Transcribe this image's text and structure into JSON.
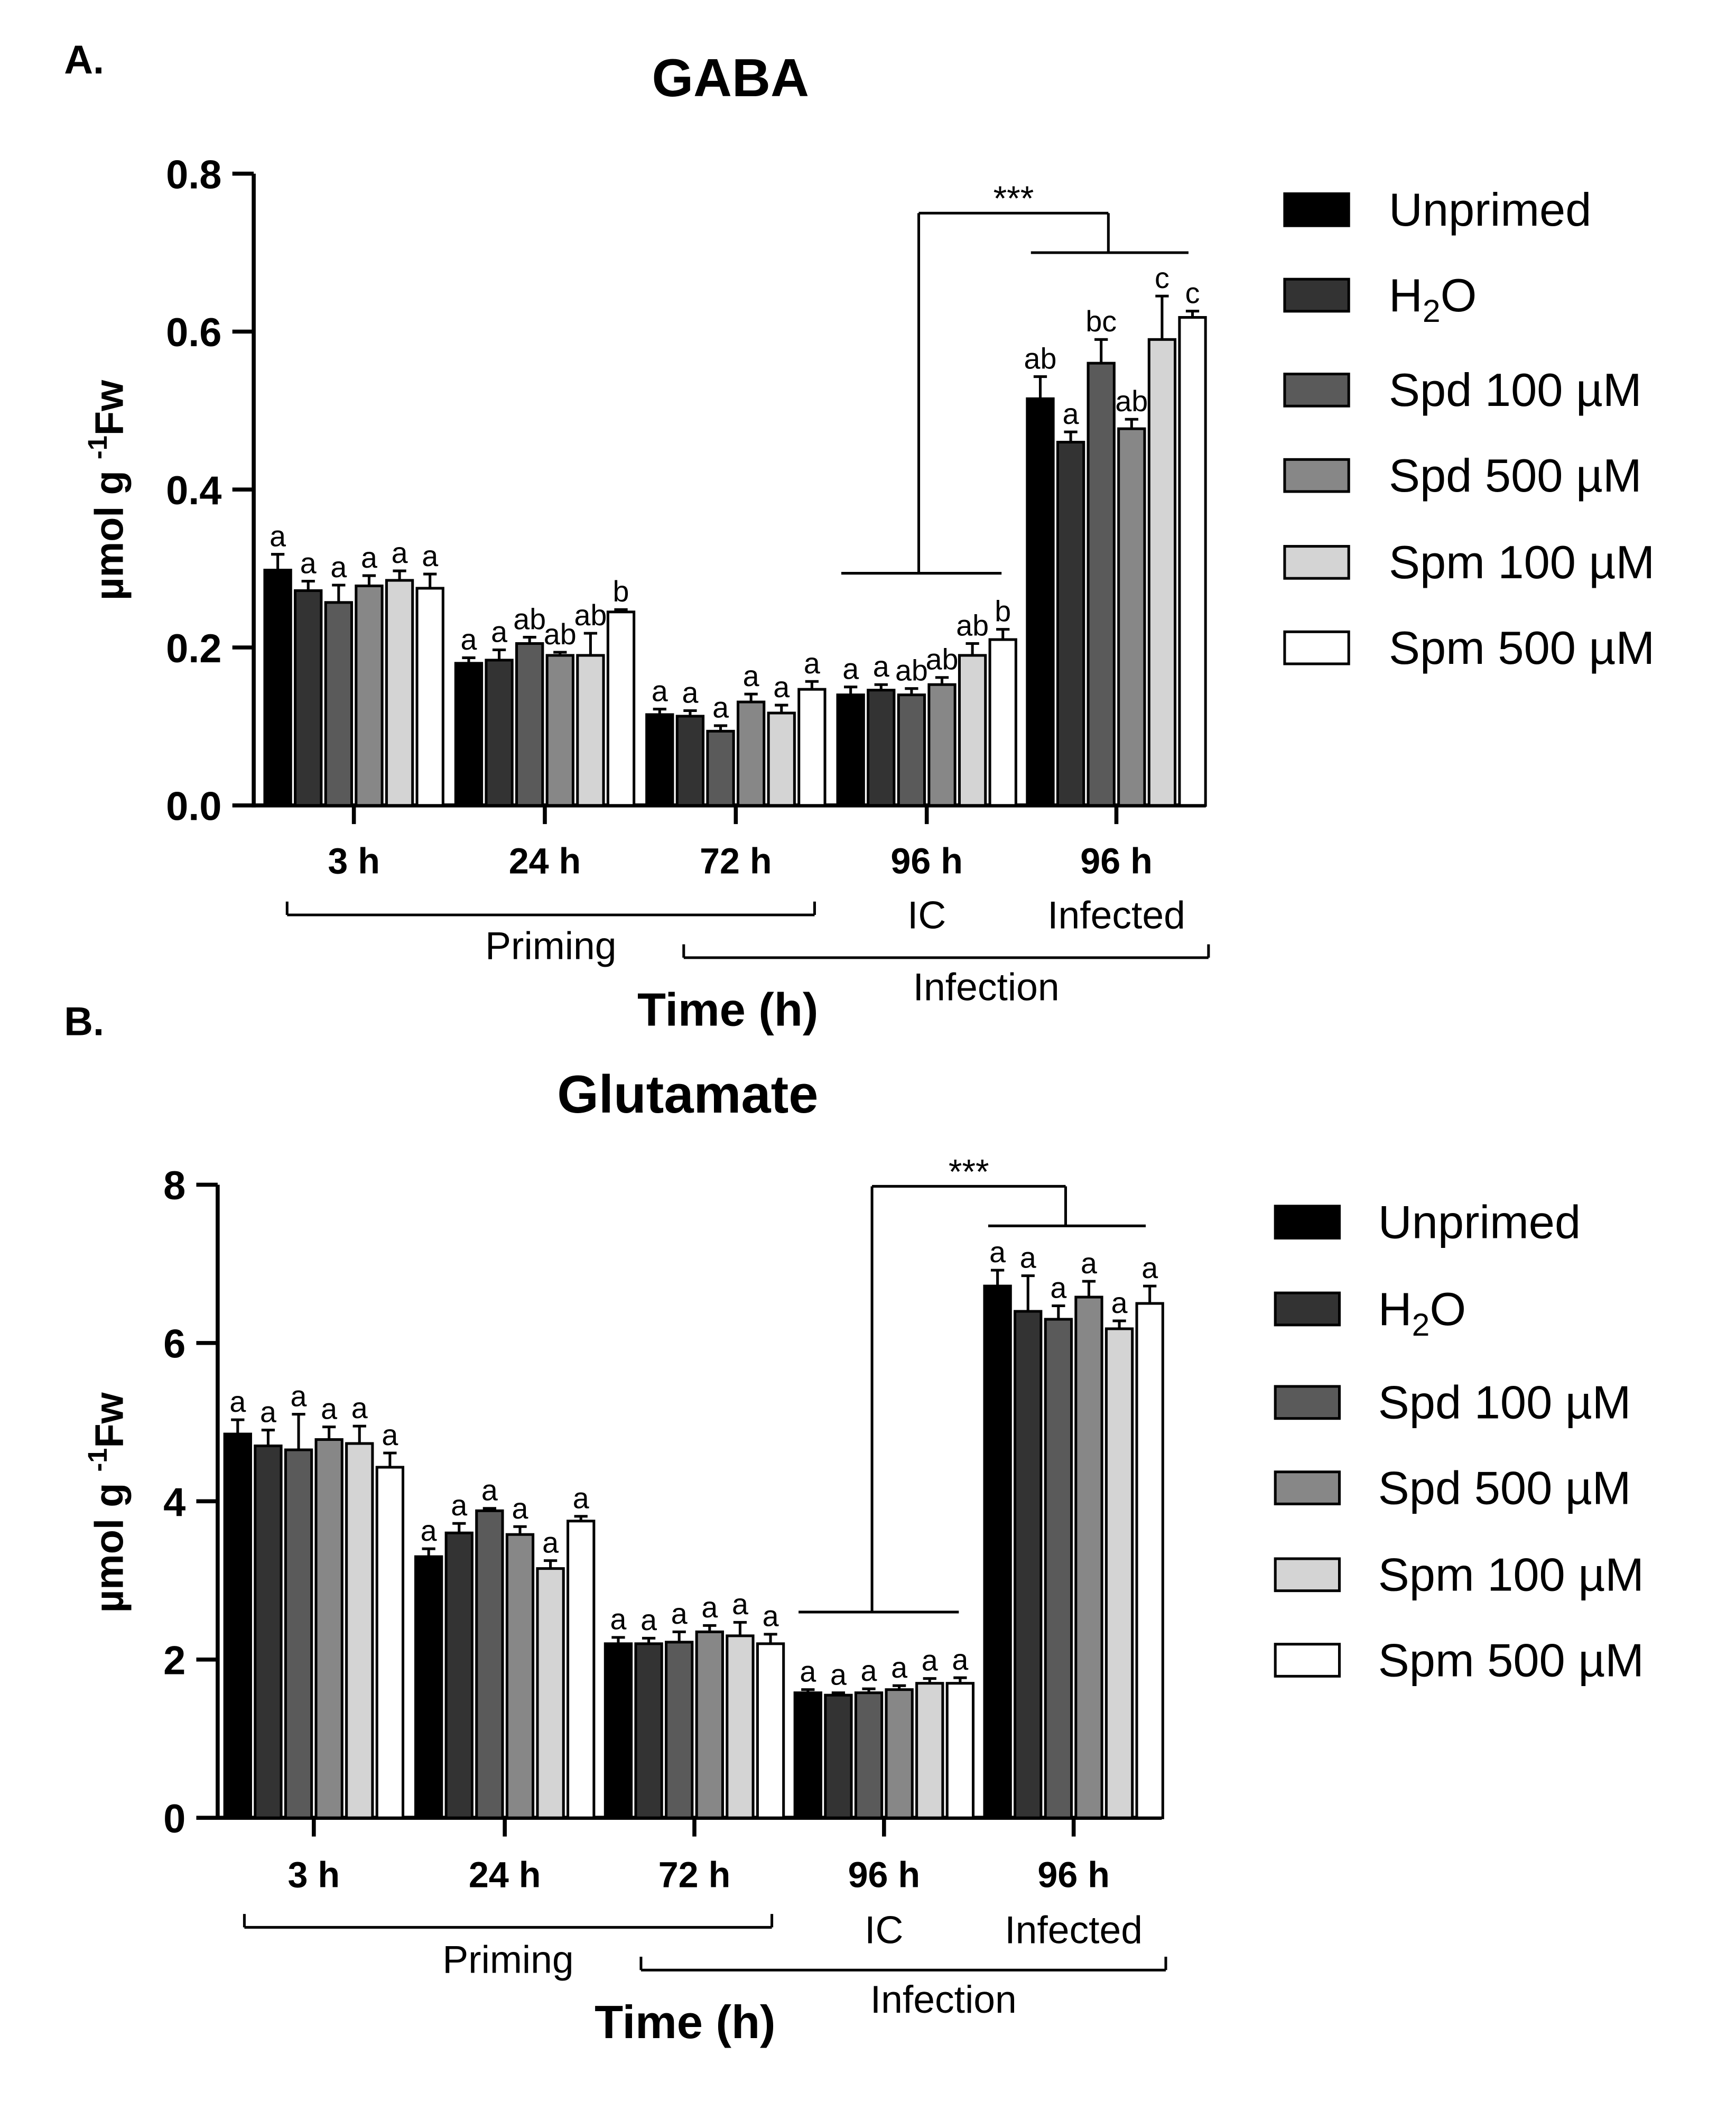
{
  "chart_data": [
    {
      "type": "bar",
      "panel_label": "A.",
      "title": "GABA",
      "xlabel": "Time (h)",
      "ylabel": "µmol g",
      "ylabel_sup": "-1",
      "ylabel_tail": "Fw",
      "ylim": [
        0,
        0.8
      ],
      "yticks": [
        0,
        0.2,
        0.4,
        0.6,
        0.8
      ],
      "ytick_labels": [
        "0.0",
        "0.2",
        "0.4",
        "0.6",
        "0.8"
      ],
      "categories": [
        "3 h",
        "24 h",
        "72 h",
        "96 h",
        "96 h"
      ],
      "category_sublabels": [
        "",
        "",
        "",
        "IC",
        "Infected"
      ],
      "group_labels": {
        "priming": "Priming",
        "infection": "Infection"
      },
      "legend_position": "right",
      "series": [
        {
          "name": "Unprimed",
          "color": "#000000",
          "values": [
            0.298,
            0.18,
            0.115,
            0.14,
            0.515
          ],
          "errors": [
            0.02,
            0.007,
            0.007,
            0.01,
            0.028
          ],
          "letters": [
            "a",
            "a",
            "a",
            "a",
            "ab"
          ]
        },
        {
          "name": "H2O",
          "color": "#333333",
          "values": [
            0.272,
            0.184,
            0.113,
            0.146,
            0.46
          ],
          "errors": [
            0.012,
            0.013,
            0.007,
            0.007,
            0.013
          ],
          "letters": [
            "a",
            "a",
            "a",
            "a",
            "a"
          ]
        },
        {
          "name": "Spd 100 µM",
          "color": "#5a5a5a",
          "values": [
            0.257,
            0.205,
            0.094,
            0.14,
            0.56
          ],
          "errors": [
            0.022,
            0.008,
            0.007,
            0.008,
            0.03
          ],
          "letters": [
            "a",
            "ab",
            "a",
            "ab",
            "bc"
          ]
        },
        {
          "name": "Spd 500 µM",
          "color": "#878787",
          "values": [
            0.278,
            0.19,
            0.131,
            0.153,
            0.477
          ],
          "errors": [
            0.013,
            0.004,
            0.01,
            0.009,
            0.012
          ],
          "letters": [
            "a",
            "ab",
            "a",
            "ab",
            "ab"
          ]
        },
        {
          "name": "Spm 100 µM",
          "color": "#d4d4d4",
          "values": [
            0.285,
            0.19,
            0.117,
            0.19,
            0.59
          ],
          "errors": [
            0.012,
            0.028,
            0.01,
            0.015,
            0.055
          ],
          "letters": [
            "a",
            "ab",
            "a",
            "ab",
            "c"
          ]
        },
        {
          "name": "Spm 500 µM",
          "color": "#ffffff",
          "values": [
            0.275,
            0.245,
            0.147,
            0.21,
            0.618
          ],
          "errors": [
            0.018,
            0.003,
            0.01,
            0.013,
            0.008
          ],
          "letters": [
            "a",
            "b",
            "a",
            "b",
            "c"
          ]
        }
      ],
      "significance": {
        "label": "***",
        "left_level": 0.294,
        "right_level": 0.7,
        "top_level": 0.75
      }
    },
    {
      "type": "bar",
      "panel_label": "B.",
      "title": "Glutamate",
      "xlabel": "Time (h)",
      "ylabel": "µmol g",
      "ylabel_sup": "-1",
      "ylabel_tail": "Fw",
      "ylim": [
        0,
        8
      ],
      "yticks": [
        0,
        2,
        4,
        6,
        8
      ],
      "ytick_labels": [
        "0",
        "2",
        "4",
        "6",
        "8"
      ],
      "categories": [
        "3 h",
        "24 h",
        "72 h",
        "96 h",
        "96 h"
      ],
      "category_sublabels": [
        "",
        "",
        "",
        "IC",
        "Infected"
      ],
      "group_labels": {
        "priming": "Priming",
        "infection": "Infection"
      },
      "legend_position": "right",
      "series": [
        {
          "name": "Unprimed",
          "color": "#000000",
          "values": [
            4.85,
            3.3,
            2.2,
            1.58,
            6.72
          ],
          "errors": [
            0.18,
            0.1,
            0.08,
            0.04,
            0.2
          ],
          "letters": [
            "a",
            "a",
            "a",
            "a",
            "a"
          ]
        },
        {
          "name": "H2O",
          "color": "#333333",
          "values": [
            4.7,
            3.6,
            2.2,
            1.55,
            6.4
          ],
          "errors": [
            0.2,
            0.12,
            0.07,
            0.03,
            0.45
          ],
          "letters": [
            "a",
            "a",
            "a",
            "a",
            "a"
          ]
        },
        {
          "name": "Spd 100 µM",
          "color": "#5a5a5a",
          "values": [
            4.65,
            3.88,
            2.22,
            1.58,
            6.3
          ],
          "errors": [
            0.45,
            0.03,
            0.13,
            0.05,
            0.17
          ],
          "letters": [
            "a",
            "a",
            "a",
            "a",
            "a"
          ]
        },
        {
          "name": "Spd 500 µM",
          "color": "#878787",
          "values": [
            4.78,
            3.58,
            2.35,
            1.62,
            6.58
          ],
          "errors": [
            0.16,
            0.1,
            0.08,
            0.05,
            0.2
          ],
          "letters": [
            "a",
            "a",
            "a",
            "a",
            "a"
          ]
        },
        {
          "name": "Spm 100 µM",
          "color": "#d4d4d4",
          "values": [
            4.73,
            3.15,
            2.3,
            1.7,
            6.18
          ],
          "errors": [
            0.22,
            0.1,
            0.17,
            0.06,
            0.1
          ],
          "letters": [
            "a",
            "a",
            "a",
            "a",
            "a"
          ]
        },
        {
          "name": "Spm 500 µM",
          "color": "#ffffff",
          "values": [
            4.43,
            3.75,
            2.2,
            1.7,
            6.5
          ],
          "errors": [
            0.18,
            0.06,
            0.12,
            0.07,
            0.22
          ],
          "letters": [
            "a",
            "a",
            "a",
            "a",
            "a"
          ]
        }
      ],
      "significance": {
        "label": "***",
        "left_level": 2.6,
        "right_level": 7.48,
        "top_level": 7.98
      }
    }
  ]
}
